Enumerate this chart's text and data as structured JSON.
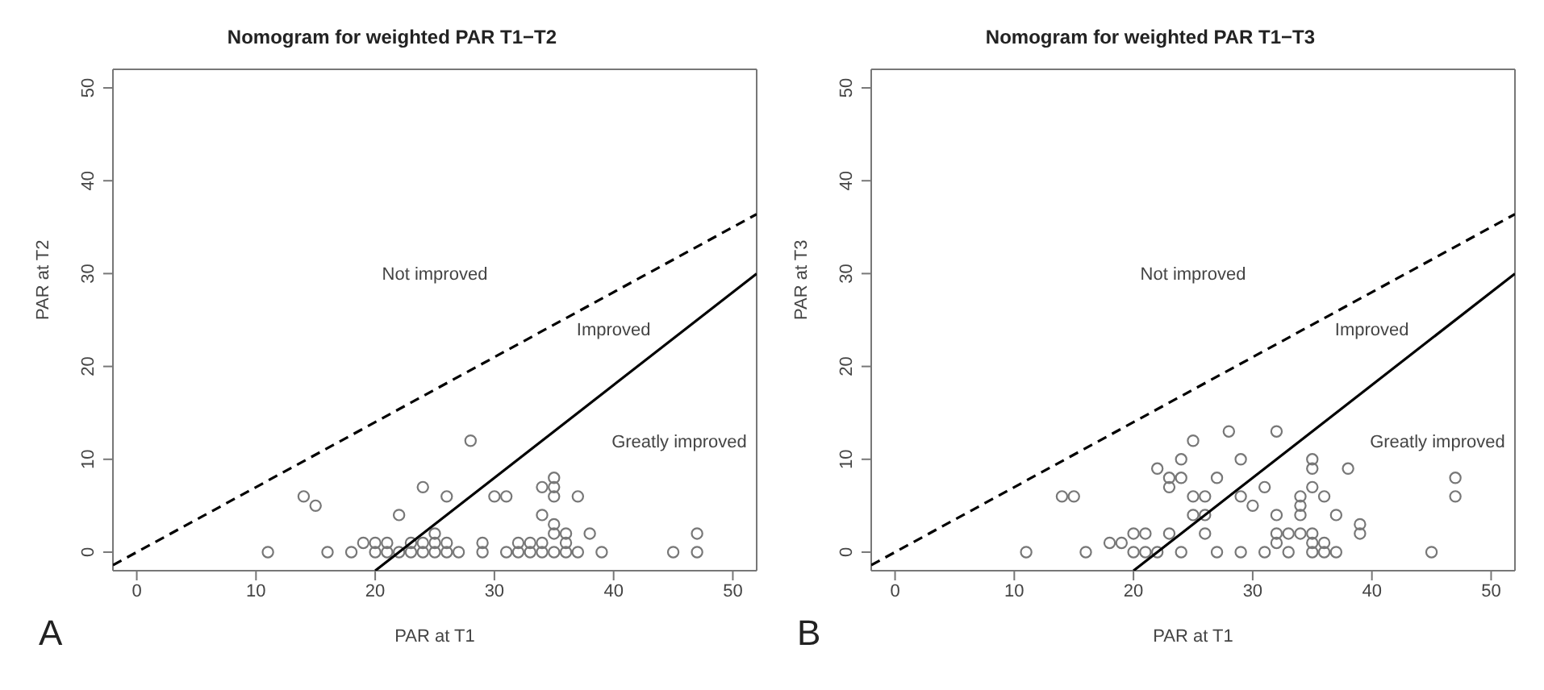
{
  "chart_data": [
    {
      "type": "scatter",
      "title": "Nomogram for weighted PAR T1−T2",
      "xlabel": "PAR at T1",
      "ylabel": "PAR at T2",
      "xlim": [
        -2,
        52
      ],
      "ylim": [
        -2,
        52
      ],
      "xticks": [
        0,
        10,
        20,
        30,
        40,
        50
      ],
      "yticks": [
        0,
        10,
        20,
        30,
        40,
        50
      ],
      "marker": "circle",
      "annotations": [
        "Not improved",
        "Improved",
        "Greatly improved",
        "A"
      ],
      "series": [
        {
          "color": "#777777",
          "x": [
            11,
            14,
            15,
            16,
            18,
            19,
            20,
            20,
            21,
            21,
            22,
            22,
            23,
            23,
            24,
            24,
            24,
            25,
            25,
            25,
            26,
            26,
            26,
            27,
            28,
            29,
            29,
            30,
            31,
            31,
            32,
            32,
            33,
            33,
            34,
            34,
            34,
            34,
            35,
            35,
            35,
            35,
            35,
            35,
            36,
            36,
            36,
            37,
            37,
            38,
            39,
            45,
            47,
            47
          ],
          "values": [
            0,
            6,
            5,
            0,
            0,
            1,
            1,
            0,
            0,
            1,
            4,
            0,
            0,
            1,
            0,
            1,
            7,
            2,
            0,
            1,
            1,
            6,
            0,
            0,
            12,
            0,
            1,
            6,
            6,
            0,
            0,
            1,
            0,
            1,
            0,
            1,
            4,
            7,
            7,
            8,
            6,
            3,
            2,
            0,
            2,
            1,
            0,
            6,
            0,
            2,
            0,
            0,
            0,
            2
          ]
        },
        {
          "type": "line",
          "color": "#000000",
          "line_style": "dashed",
          "marker": "none",
          "x": [
            -2,
            52
          ],
          "values": [
            -1.4,
            36.4
          ]
        },
        {
          "type": "line",
          "color": "#000000",
          "line_style": "solid",
          "marker": "none",
          "x": [
            20,
            52
          ],
          "values": [
            -2,
            30
          ]
        }
      ]
    },
    {
      "type": "scatter",
      "title": "Nomogram for weighted PAR T1−T3",
      "xlabel": "PAR at T1",
      "ylabel": "PAR at T3",
      "xlim": [
        -2,
        52
      ],
      "ylim": [
        -2,
        52
      ],
      "xticks": [
        0,
        10,
        20,
        30,
        40,
        50
      ],
      "yticks": [
        0,
        10,
        20,
        30,
        40,
        50
      ],
      "marker": "circle",
      "annotations": [
        "Not improved",
        "Improved",
        "Greatly improved",
        "B"
      ],
      "series": [
        {
          "color": "#777777",
          "x": [
            11,
            14,
            15,
            16,
            18,
            19,
            20,
            20,
            21,
            21,
            22,
            22,
            23,
            23,
            23,
            24,
            24,
            24,
            25,
            25,
            25,
            26,
            26,
            26,
            27,
            27,
            28,
            29,
            29,
            29,
            30,
            31,
            31,
            32,
            32,
            32,
            32,
            33,
            33,
            34,
            34,
            34,
            34,
            35,
            35,
            35,
            35,
            35,
            35,
            36,
            36,
            36,
            37,
            37,
            38,
            39,
            39,
            45,
            47,
            47
          ],
          "values": [
            0,
            6,
            6,
            0,
            1,
            1,
            2,
            0,
            2,
            0,
            0,
            9,
            8,
            7,
            2,
            10,
            8,
            0,
            12,
            6,
            4,
            6,
            4,
            2,
            8,
            0,
            13,
            10,
            6,
            0,
            5,
            7,
            0,
            13,
            4,
            2,
            1,
            2,
            0,
            6,
            5,
            4,
            2,
            10,
            9,
            7,
            2,
            1,
            0,
            6,
            1,
            0,
            4,
            0,
            9,
            3,
            2,
            0,
            8,
            6
          ]
        },
        {
          "type": "line",
          "color": "#000000",
          "line_style": "dashed",
          "marker": "none",
          "x": [
            -2,
            52
          ],
          "values": [
            -1.4,
            36.4
          ]
        },
        {
          "type": "line",
          "color": "#000000",
          "line_style": "solid",
          "marker": "none",
          "x": [
            20,
            52
          ],
          "values": [
            -2,
            30
          ]
        }
      ]
    }
  ]
}
